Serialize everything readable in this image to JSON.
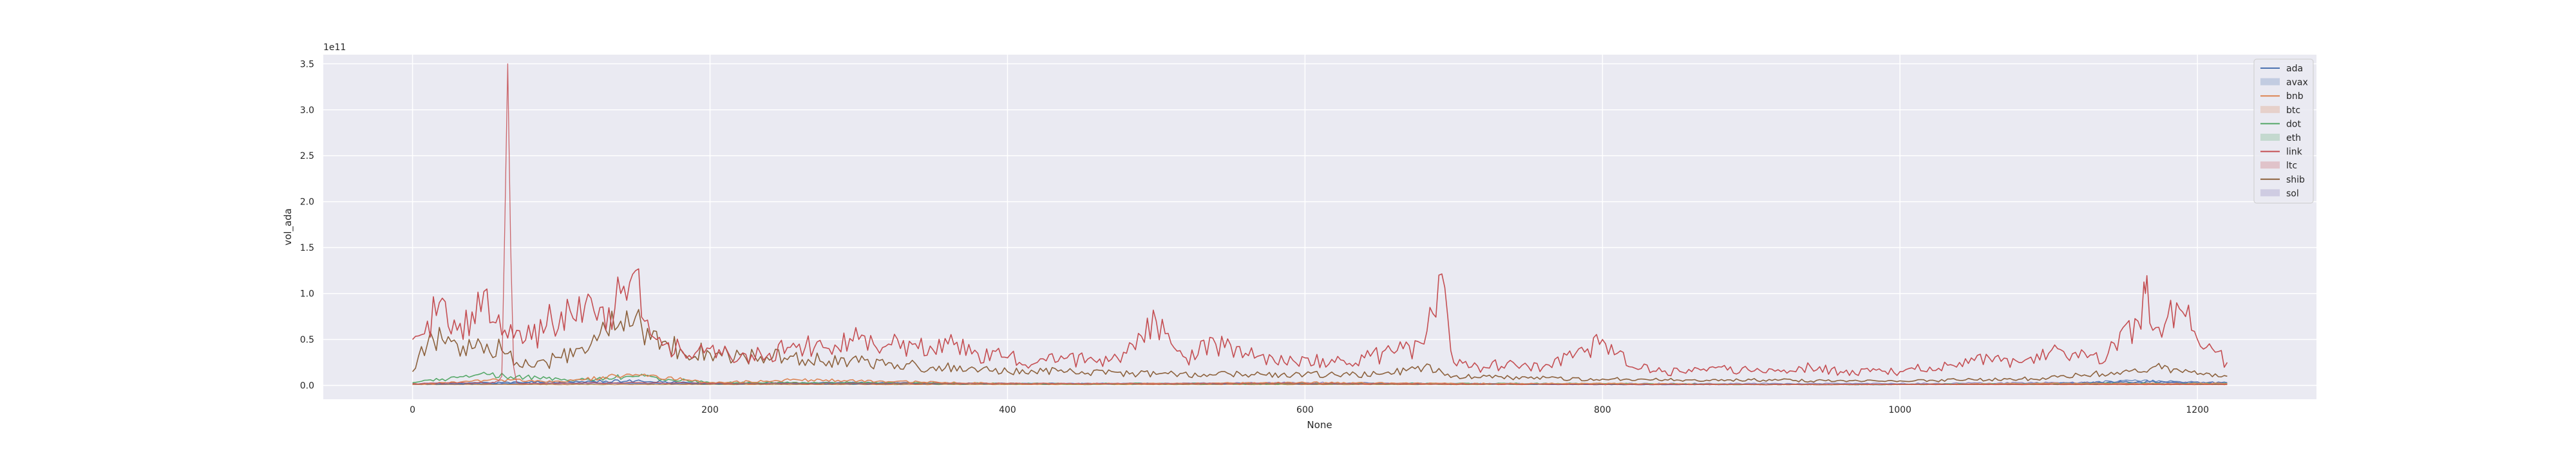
{
  "chart_data": {
    "type": "line",
    "title": "",
    "xlabel": "None",
    "ylabel": "vol_ada",
    "offset_label": "1e11",
    "xlim": [
      -60,
      1280
    ],
    "ylim": [
      -0.15,
      3.6
    ],
    "x_ticks": [
      0,
      200,
      400,
      600,
      800,
      1000,
      1200
    ],
    "x_tick_labels": [
      "0",
      "200",
      "400",
      "600",
      "800",
      "1000",
      "1200"
    ],
    "y_ticks": [
      0.0,
      0.5,
      1.0,
      1.5,
      2.0,
      2.5,
      3.0,
      3.5
    ],
    "y_tick_labels": [
      "0.0",
      "0.5",
      "1.0",
      "1.5",
      "2.0",
      "2.5",
      "3.0",
      "3.5"
    ],
    "grid": true,
    "legend_position": "top-right",
    "legend_order": [
      "ada",
      "avax",
      "bnb",
      "btc",
      "dot",
      "eth",
      "link",
      "ltc",
      "shib",
      "sol"
    ],
    "series": [
      {
        "name": "ada",
        "legend_style": "line",
        "color": "#4c72b0",
        "x": [
          0,
          60,
          100,
          150,
          200,
          300,
          400,
          500,
          600,
          700,
          800,
          900,
          1000,
          1100,
          1160,
          1220
        ],
        "y": [
          0.02,
          0.03,
          0.04,
          0.05,
          0.02,
          0.02,
          0.02,
          0.02,
          0.02,
          0.02,
          0.01,
          0.01,
          0.01,
          0.02,
          0.04,
          0.02
        ]
      },
      {
        "name": "avax",
        "legend_style": "patch",
        "color": "#4c72b0",
        "x": [
          0,
          100,
          200,
          300,
          400,
          500,
          600,
          700,
          800,
          900,
          1000,
          1100,
          1160,
          1220
        ],
        "y": [
          0.01,
          0.03,
          0.02,
          0.03,
          0.02,
          0.02,
          0.02,
          0.02,
          0.01,
          0.01,
          0.01,
          0.02,
          0.05,
          0.03
        ]
      },
      {
        "name": "bnb",
        "legend_style": "line",
        "color": "#dd8452",
        "x": [
          0,
          60,
          100,
          150,
          200,
          260,
          300,
          400,
          500,
          600,
          700,
          800,
          900,
          1000,
          1100,
          1220
        ],
        "y": [
          0.01,
          0.06,
          0.04,
          0.12,
          0.03,
          0.06,
          0.05,
          0.02,
          0.02,
          0.03,
          0.02,
          0.02,
          0.01,
          0.01,
          0.02,
          0.02
        ]
      },
      {
        "name": "btc",
        "legend_style": "patch",
        "color": "#dd8452",
        "x": [
          0,
          200,
          400,
          600,
          800,
          1000,
          1220
        ],
        "y": [
          0.01,
          0.01,
          0.01,
          0.01,
          0.01,
          0.01,
          0.01
        ]
      },
      {
        "name": "dot",
        "legend_style": "line",
        "color": "#55a868",
        "x": [
          0,
          50,
          100,
          150,
          200,
          300,
          400,
          500,
          600,
          700,
          800,
          900,
          1000,
          1100,
          1220
        ],
        "y": [
          0.03,
          0.12,
          0.06,
          0.1,
          0.03,
          0.03,
          0.02,
          0.02,
          0.02,
          0.02,
          0.02,
          0.01,
          0.01,
          0.02,
          0.02
        ]
      },
      {
        "name": "eth",
        "legend_style": "patch",
        "color": "#55a868",
        "x": [
          0,
          200,
          400,
          600,
          800,
          1000,
          1220
        ],
        "y": [
          0.01,
          0.01,
          0.01,
          0.01,
          0.01,
          0.01,
          0.01
        ]
      },
      {
        "name": "link",
        "legend_style": "line",
        "color": "#c44e52",
        "x": [
          0,
          10,
          20,
          30,
          40,
          50,
          60,
          70,
          80,
          90,
          100,
          110,
          120,
          130,
          140,
          150,
          160,
          170,
          180,
          190,
          200,
          220,
          240,
          260,
          280,
          300,
          320,
          340,
          360,
          380,
          400,
          420,
          440,
          460,
          480,
          500,
          520,
          540,
          560,
          580,
          600,
          620,
          640,
          660,
          680,
          690,
          700,
          720,
          740,
          760,
          780,
          800,
          810,
          820,
          840,
          860,
          880,
          900,
          920,
          940,
          960,
          980,
          1000,
          1020,
          1040,
          1060,
          1080,
          1100,
          1120,
          1140,
          1160,
          1165,
          1170,
          1180,
          1190,
          1200,
          1210,
          1220
        ],
        "y": [
          0.5,
          0.7,
          0.95,
          0.6,
          0.8,
          1.05,
          0.55,
          0.6,
          0.5,
          0.65,
          0.8,
          0.7,
          0.95,
          0.6,
          1.0,
          1.25,
          0.55,
          0.45,
          0.4,
          0.35,
          0.4,
          0.3,
          0.35,
          0.45,
          0.4,
          0.5,
          0.45,
          0.4,
          0.45,
          0.35,
          0.3,
          0.25,
          0.3,
          0.25,
          0.35,
          0.7,
          0.3,
          0.45,
          0.35,
          0.25,
          0.3,
          0.25,
          0.3,
          0.35,
          0.45,
          1.2,
          0.25,
          0.2,
          0.25,
          0.2,
          0.3,
          0.5,
          0.35,
          0.2,
          0.15,
          0.15,
          0.2,
          0.15,
          0.15,
          0.2,
          0.15,
          0.15,
          0.15,
          0.2,
          0.25,
          0.3,
          0.25,
          0.35,
          0.3,
          0.35,
          0.7,
          1.0,
          0.6,
          0.75,
          0.8,
          0.5,
          0.4,
          0.25
        ]
      },
      {
        "name": "ltc",
        "legend_style": "patch",
        "color": "#c44e52",
        "x": [
          0,
          55,
          60,
          64,
          66,
          68,
          70,
          75,
          80,
          150,
          200,
          400,
          600,
          800,
          1000,
          1220
        ],
        "y": [
          0.02,
          0.03,
          0.1,
          3.5,
          1.5,
          0.2,
          0.03,
          0.02,
          0.02,
          0.03,
          0.02,
          0.02,
          0.02,
          0.01,
          0.01,
          0.01
        ]
      },
      {
        "name": "shib",
        "legend_style": "line",
        "color": "#8c613c",
        "x": [
          0,
          10,
          20,
          30,
          40,
          50,
          60,
          70,
          80,
          90,
          100,
          110,
          120,
          130,
          140,
          150,
          160,
          180,
          200,
          250,
          300,
          350,
          400,
          450,
          500,
          550,
          600,
          650,
          680,
          700,
          750,
          800,
          850,
          900,
          950,
          1000,
          1050,
          1100,
          1150,
          1170,
          1200,
          1220
        ],
        "y": [
          0.15,
          0.45,
          0.5,
          0.45,
          0.4,
          0.45,
          0.38,
          0.25,
          0.2,
          0.25,
          0.3,
          0.4,
          0.45,
          0.6,
          0.7,
          0.75,
          0.5,
          0.4,
          0.35,
          0.3,
          0.25,
          0.2,
          0.15,
          0.15,
          0.12,
          0.12,
          0.12,
          0.12,
          0.2,
          0.1,
          0.08,
          0.07,
          0.06,
          0.06,
          0.05,
          0.05,
          0.06,
          0.08,
          0.15,
          0.2,
          0.12,
          0.1
        ]
      },
      {
        "name": "sol",
        "legend_style": "patch",
        "color": "#8172b3",
        "x": [
          0,
          100,
          200,
          300,
          400,
          500,
          600,
          700,
          800,
          900,
          1000,
          1100,
          1220
        ],
        "y": [
          0.01,
          0.02,
          0.02,
          0.03,
          0.02,
          0.02,
          0.03,
          0.02,
          0.02,
          0.02,
          0.02,
          0.03,
          0.03
        ]
      }
    ]
  }
}
